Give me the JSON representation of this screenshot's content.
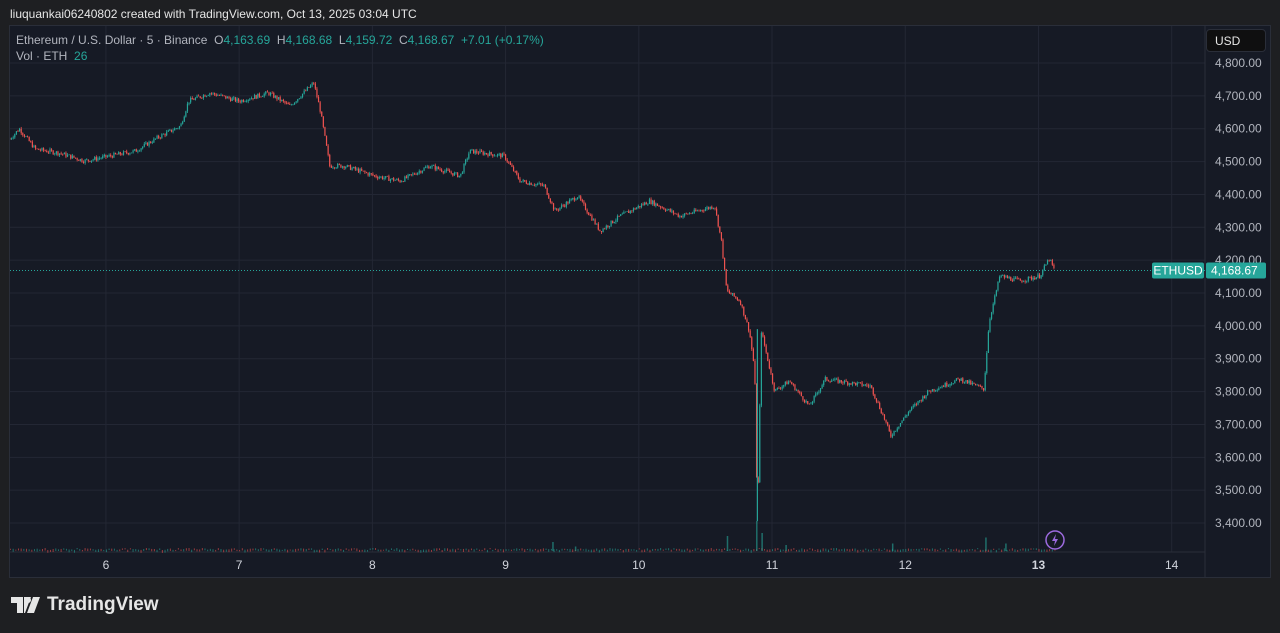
{
  "credit": "liuquankai06240802 created with TradingView.com, Oct 13, 2025 03:04 UTC",
  "legend": {
    "symbol": "Ethereum / U.S. Dollar · 5 · Binance",
    "o_label": "O",
    "o": "4,163.69",
    "h_label": "H",
    "h": "4,168.68",
    "l_label": "L",
    "l": "4,159.72",
    "c_label": "C",
    "c": "4,168.67",
    "change": "+7.01 (+0.17%)",
    "vol_label": "Vol · ETH",
    "vol": "26"
  },
  "currency": "USD",
  "brand": "TradingView",
  "colors": {
    "up": "#26a69a",
    "down": "#ef5350",
    "bg": "#161a25",
    "grid": "#232734"
  },
  "chart_data": {
    "type": "candlestick",
    "ylim": [
      3300,
      4850
    ],
    "xlim": [
      5.28,
      14.25
    ],
    "yticks": [
      3400,
      3500,
      3600,
      3700,
      3800,
      3900,
      4000,
      4100,
      4200,
      4300,
      4400,
      4500,
      4600,
      4700,
      4800
    ],
    "ytick_labels": [
      "3,400.00",
      "3,500.00",
      "3,600.00",
      "3,700.00",
      "3,800.00",
      "3,900.00",
      "4,000.00",
      "4,100.00",
      "4,200.00",
      "4,300.00",
      "4,400.00",
      "4,500.00",
      "4,600.00",
      "4,700.00",
      "4,800.00"
    ],
    "xticks": [
      6,
      7,
      8,
      9,
      10,
      11,
      12,
      13,
      14
    ],
    "xtick_labels": [
      "6",
      "7",
      "8",
      "9",
      "10",
      "11",
      "12",
      "13",
      "14"
    ],
    "last_price": {
      "symbol": "ETHUSD",
      "value": 4168.67,
      "label": "4,168.67"
    },
    "price": [
      [
        5.28,
        4569
      ],
      [
        5.35,
        4600
      ],
      [
        5.47,
        4538
      ],
      [
        5.65,
        4526
      ],
      [
        5.84,
        4502
      ],
      [
        6.03,
        4517
      ],
      [
        6.22,
        4532
      ],
      [
        6.41,
        4578
      ],
      [
        6.56,
        4608
      ],
      [
        6.62,
        4684
      ],
      [
        6.78,
        4709
      ],
      [
        7.0,
        4684
      ],
      [
        7.22,
        4709
      ],
      [
        7.38,
        4669
      ],
      [
        7.56,
        4739
      ],
      [
        7.61,
        4654
      ],
      [
        7.68,
        4487
      ],
      [
        7.79,
        4487
      ],
      [
        8.02,
        4456
      ],
      [
        8.21,
        4441
      ],
      [
        8.43,
        4487
      ],
      [
        8.66,
        4456
      ],
      [
        8.73,
        4532
      ],
      [
        8.99,
        4517
      ],
      [
        9.11,
        4441
      ],
      [
        9.29,
        4426
      ],
      [
        9.37,
        4350
      ],
      [
        9.54,
        4395
      ],
      [
        9.71,
        4289
      ],
      [
        9.86,
        4334
      ],
      [
        10.08,
        4380
      ],
      [
        10.31,
        4334
      ],
      [
        10.57,
        4365
      ],
      [
        10.62,
        4258
      ],
      [
        10.66,
        4106
      ],
      [
        10.76,
        4076
      ],
      [
        10.83,
        3984
      ],
      [
        10.87,
        3863
      ],
      [
        10.89,
        3406
      ],
      [
        10.92,
        3984
      ],
      [
        11.02,
        3802
      ],
      [
        11.13,
        3832
      ],
      [
        11.28,
        3756
      ],
      [
        11.4,
        3838
      ],
      [
        11.74,
        3817
      ],
      [
        11.85,
        3711
      ],
      [
        11.89,
        3665
      ],
      [
        12.03,
        3741
      ],
      [
        12.18,
        3802
      ],
      [
        12.41,
        3838
      ],
      [
        12.59,
        3808
      ],
      [
        12.63,
        4015
      ],
      [
        12.71,
        4152
      ],
      [
        12.86,
        4137
      ],
      [
        13.01,
        4152
      ],
      [
        13.08,
        4204
      ],
      [
        13.12,
        4168.67
      ]
    ],
    "volume_spikes": [
      [
        9.35,
        30
      ],
      [
        9.52,
        15
      ],
      [
        10.66,
        50
      ],
      [
        10.88,
        100
      ],
      [
        10.92,
        60
      ],
      [
        11.1,
        20
      ],
      [
        11.9,
        25
      ],
      [
        12.6,
        45
      ],
      [
        12.75,
        25
      ]
    ]
  }
}
